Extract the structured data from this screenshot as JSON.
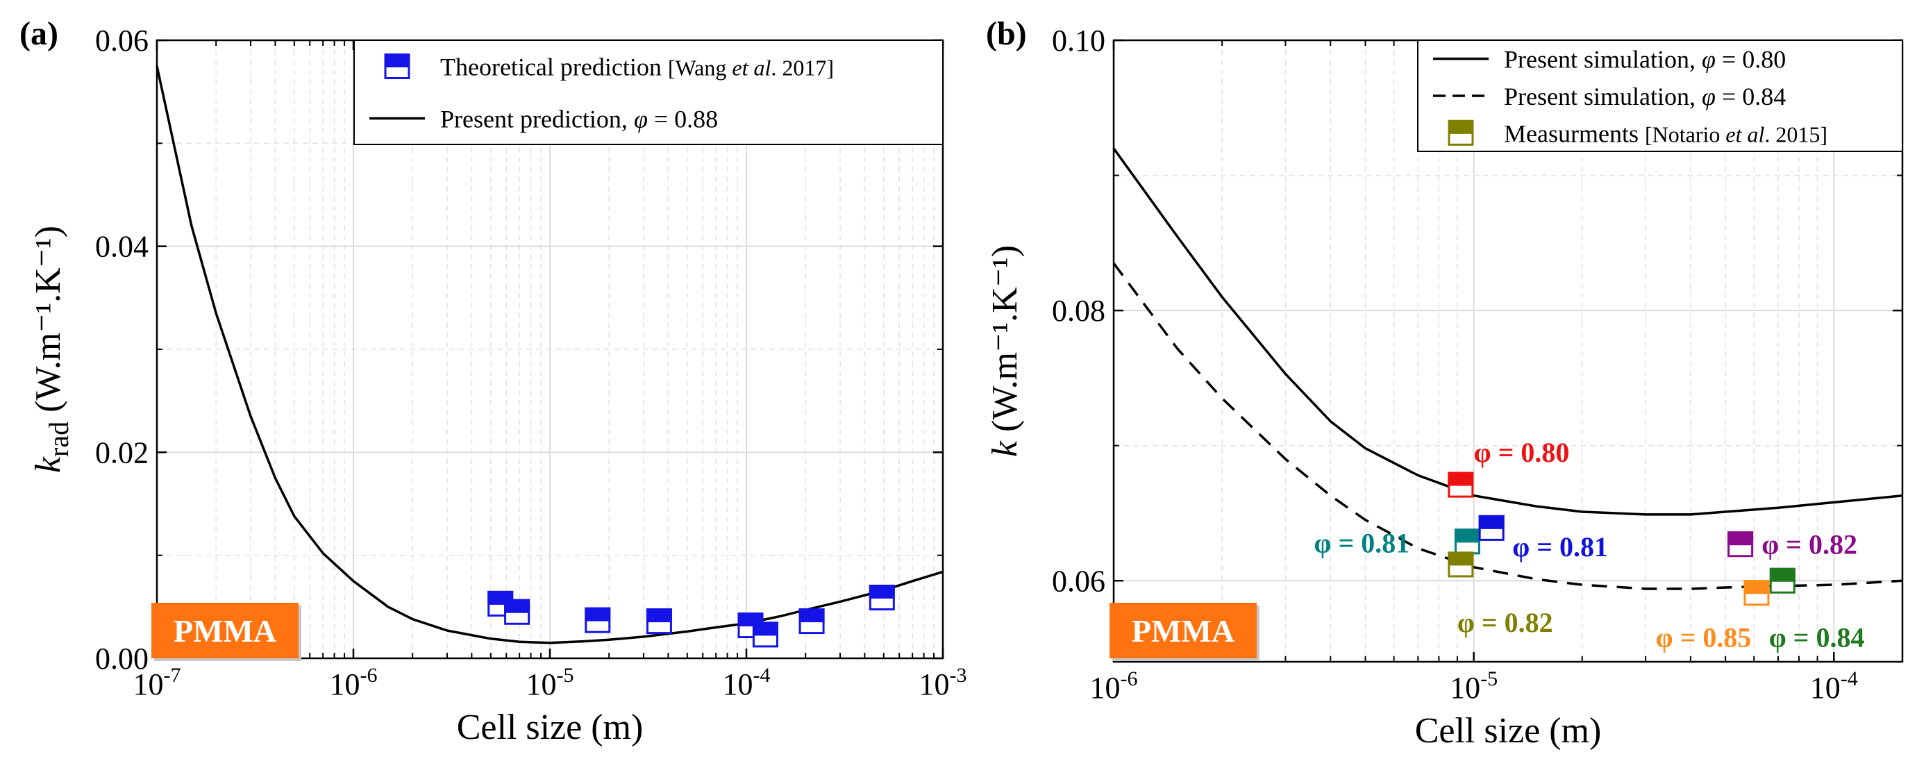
{
  "chart_data": [
    {
      "id": "a",
      "type": "scatter",
      "panel_label": "(a)",
      "badge": "PMMA",
      "xlabel": "Cell size (m)",
      "ylabel_main": "k",
      "ylabel_sub": "rad",
      "ylabel_units": "(W.m⁻¹.K⁻¹)",
      "xscale": "log",
      "xlim": [
        1e-07,
        0.001
      ],
      "ylim": [
        0,
        0.06
      ],
      "x_ticks": [
        {
          "value": 1e-07,
          "base": "10",
          "exp": "-7"
        },
        {
          "value": 1e-06,
          "base": "10",
          "exp": "-6"
        },
        {
          "value": 1e-05,
          "base": "10",
          "exp": "-5"
        },
        {
          "value": 0.0001,
          "base": "10",
          "exp": "-4"
        },
        {
          "value": 0.001,
          "base": "10",
          "exp": "-3"
        }
      ],
      "y_ticks": [
        {
          "value": 0,
          "label": "0.00"
        },
        {
          "value": 0.02,
          "label": "0.02"
        },
        {
          "value": 0.04,
          "label": "0.04"
        },
        {
          "value": 0.06,
          "label": "0.06"
        }
      ],
      "legend": {
        "position": "top-right",
        "entries": [
          {
            "kind": "marker",
            "color": "#1414e6",
            "text": "Theoretical prediction ",
            "ref_open": "[Wang ",
            "ref_italic": "et al",
            "ref_close": ". 2017]"
          },
          {
            "kind": "line",
            "text_prefix": "Present prediction, ",
            "symbol": "φ",
            "text_suffix": " = 0.88"
          }
        ]
      },
      "series": [
        {
          "name": "Present prediction, φ = 0.88",
          "kind": "line",
          "color": "#000000",
          "dashed": false,
          "x": [
            1e-07,
            1.5e-07,
            2e-07,
            3e-07,
            4e-07,
            5e-07,
            7e-07,
            1e-06,
            1.5e-06,
            2e-06,
            3e-06,
            5e-06,
            7e-06,
            1e-05,
            1.5e-05,
            2e-05,
            3e-05,
            5e-05,
            7e-05,
            0.0001,
            0.00015,
            0.0002,
            0.0003,
            0.0005,
            0.0007,
            0.001
          ],
          "y": [
            0.0575,
            0.042,
            0.0335,
            0.0235,
            0.0175,
            0.0138,
            0.0102,
            0.0075,
            0.005,
            0.0038,
            0.0027,
            0.0019,
            0.0016,
            0.0015,
            0.00165,
            0.0018,
            0.0021,
            0.0026,
            0.003,
            0.0034,
            0.0041,
            0.0047,
            0.0055,
            0.0066,
            0.0075,
            0.0084
          ]
        },
        {
          "name": "Theoretical prediction",
          "kind": "marker",
          "color": "#1414e6",
          "points": [
            {
              "x": 5.6e-06,
              "y": 0.0053
            },
            {
              "x": 6.8e-06,
              "y": 0.0045
            },
            {
              "x": 1.75e-05,
              "y": 0.0037
            },
            {
              "x": 3.6e-05,
              "y": 0.0036
            },
            {
              "x": 0.000105,
              "y": 0.0032
            },
            {
              "x": 0.000125,
              "y": 0.0023
            },
            {
              "x": 0.000215,
              "y": 0.0036
            },
            {
              "x": 0.00049,
              "y": 0.0059
            }
          ]
        }
      ]
    },
    {
      "id": "b",
      "type": "scatter",
      "panel_label": "(b)",
      "badge": "PMMA",
      "xlabel": "Cell size (m)",
      "ylabel_main": "k",
      "ylabel_sub": "",
      "ylabel_units": "(W.m⁻¹.K⁻¹)",
      "xscale": "log",
      "xlim": [
        1e-06,
        0.000155
      ],
      "ylim": [
        0.054,
        0.1
      ],
      "x_ticks": [
        {
          "value": 1e-06,
          "base": "10",
          "exp": "-6"
        },
        {
          "value": 1e-05,
          "base": "10",
          "exp": "-5"
        },
        {
          "value": 0.0001,
          "base": "10",
          "exp": "-4"
        }
      ],
      "y_ticks": [
        {
          "value": 0.06,
          "label": "0.06"
        },
        {
          "value": 0.08,
          "label": "0.08"
        },
        {
          "value": 0.1,
          "label": "0.10"
        }
      ],
      "legend": {
        "position": "top-right",
        "entries": [
          {
            "kind": "line",
            "text_prefix": "Present simulation, ",
            "symbol": "φ",
            "text_suffix": " = 0.80"
          },
          {
            "kind": "dashed",
            "text_prefix": "Present simulation, ",
            "symbol": "φ",
            "text_suffix": " = 0.84"
          },
          {
            "kind": "marker",
            "color": "#808000",
            "text": "Measurments ",
            "ref_open": "[Notario ",
            "ref_italic": "et al",
            "ref_close": ". 2015]"
          }
        ]
      },
      "series": [
        {
          "name": "Present simulation, φ = 0.80",
          "kind": "line",
          "color": "#000000",
          "dashed": false,
          "x": [
            1e-06,
            1.5e-06,
            2e-06,
            3e-06,
            4e-06,
            5e-06,
            7e-06,
            1e-05,
            1.5e-05,
            2e-05,
            3e-05,
            4e-05,
            5e-05,
            7e-05,
            0.0001,
            0.000155
          ],
          "y": [
            0.092,
            0.0855,
            0.081,
            0.0753,
            0.0718,
            0.0698,
            0.0678,
            0.0663,
            0.0655,
            0.0651,
            0.0649,
            0.0649,
            0.0651,
            0.0654,
            0.0658,
            0.0663
          ]
        },
        {
          "name": "Present simulation, φ = 0.84",
          "kind": "line",
          "color": "#000000",
          "dashed": true,
          "x": [
            1e-06,
            1.5e-06,
            2e-06,
            3e-06,
            4e-06,
            5e-06,
            7e-06,
            1e-05,
            1.5e-05,
            2e-05,
            3e-05,
            4e-05,
            5e-05,
            7e-05,
            0.0001,
            0.000155
          ],
          "y": [
            0.0835,
            0.0772,
            0.0735,
            0.069,
            0.0663,
            0.0645,
            0.0624,
            0.061,
            0.0601,
            0.0597,
            0.0594,
            0.0594,
            0.0595,
            0.0596,
            0.0597,
            0.06
          ]
        },
        {
          "name": "Measurments",
          "kind": "marker",
          "points": [
            {
              "x": 9.2e-06,
              "y": 0.0671,
              "color": "#ee1111",
              "label": "φ = 0.80",
              "label_x": 1e-05,
              "label_y": 0.0688
            },
            {
              "x": 9.6e-06,
              "y": 0.0629,
              "color": "#008080",
              "label": "φ = 0.81",
              "label_x": 3.6e-06,
              "label_y": 0.0621
            },
            {
              "x": 1.12e-05,
              "y": 0.0639,
              "color": "#1111dd",
              "label": "φ = 0.81",
              "label_x": 1.28e-05,
              "label_y": 0.0618
            },
            {
              "x": 9.2e-06,
              "y": 0.0612,
              "color": "#808000",
              "label": "φ = 0.82",
              "label_x": 9e-06,
              "label_y": 0.0562
            },
            {
              "x": 5.5e-05,
              "y": 0.0627,
              "color": "#8b0a8b",
              "label": "φ = 0.82",
              "label_x": 6.3e-05,
              "label_y": 0.062
            },
            {
              "x": 6.1e-05,
              "y": 0.0591,
              "color": "#ff8c1a",
              "label": "φ = 0.85",
              "label_x": 3.2e-05,
              "label_y": 0.0551
            },
            {
              "x": 7.2e-05,
              "y": 0.06,
              "color": "#1f7a1f",
              "label": "φ = 0.84",
              "label_x": 6.6e-05,
              "label_y": 0.0551
            }
          ]
        }
      ]
    }
  ]
}
